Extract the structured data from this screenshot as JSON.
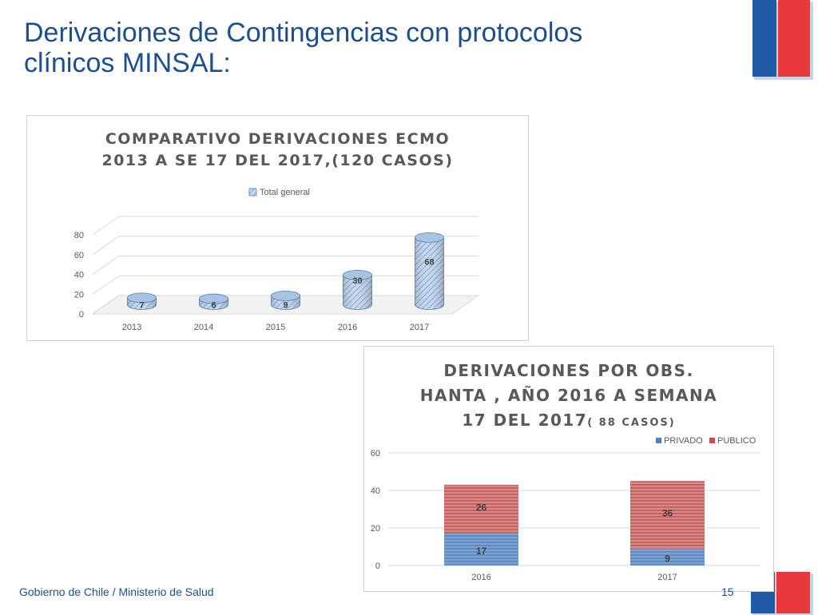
{
  "slide": {
    "title_line1": "Derivaciones de Contingencias con protocolos",
    "title_line2": "clínicos MINSAL:",
    "footer": "Gobierno de Chile / Ministerio de Salud",
    "page_number": "15"
  },
  "colors": {
    "title": "#1f4e8c",
    "flag_blue": "#1f5aa6",
    "flag_red": "#e8383d",
    "ecmo_bar": "#8fb0d8",
    "privado": "#4f81bd",
    "publico": "#c0504d"
  },
  "chart_data": [
    {
      "type": "bar",
      "style": "3d-cylinder",
      "title_line1": "COMPARATIVO DERIVACIONES ECMO",
      "title_line2": "2013 A SE 17 DEL 2017,(120 CASOS)",
      "legend": "Total general",
      "categories": [
        "2013",
        "2014",
        "2015",
        "2016",
        "2017"
      ],
      "series": [
        {
          "name": "Total general",
          "values": [
            7,
            6,
            9,
            30,
            68
          ]
        }
      ],
      "ylim": [
        0,
        80
      ],
      "yticks": [
        "0",
        "20",
        "40",
        "60",
        "80"
      ],
      "grid": true,
      "legend_position": "top"
    },
    {
      "type": "bar",
      "style": "stacked",
      "title_line1": "DERIVACIONES POR OBS.",
      "title_line2": "HANTA , AÑO 2016 A SEMANA",
      "title_line3": "17 DEL 2017",
      "title_suffix": "( 88 CASOS)",
      "categories": [
        "2016",
        "2017"
      ],
      "series": [
        {
          "name": "PRIVADO",
          "values": [
            17,
            9
          ]
        },
        {
          "name": "PUBLICO",
          "values": [
            26,
            36
          ]
        }
      ],
      "ylim": [
        0,
        60
      ],
      "yticks": [
        "0",
        "20",
        "40",
        "60"
      ],
      "grid": true,
      "legend_position": "top-right"
    }
  ]
}
